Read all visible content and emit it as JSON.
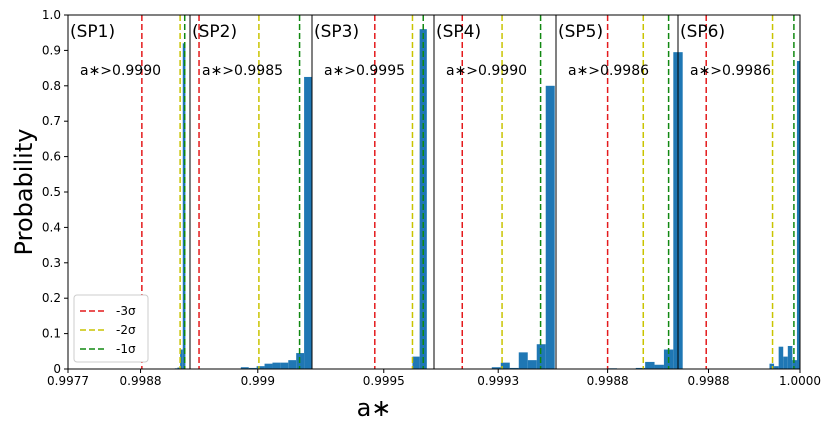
{
  "chart_data": {
    "type": "bar",
    "ylabel": "Probability",
    "xlabel": "a∗",
    "ylim": [
      0,
      1.0
    ],
    "y_ticks": [
      "0",
      "0.1",
      "0.2",
      "0.3",
      "0.4",
      "0.5",
      "0.6",
      "0.7",
      "0.8",
      "0.9",
      "1.0"
    ],
    "legend": {
      "placement": "lower-left",
      "entries": [
        {
          "label": "-3σ",
          "color": "#e41a1c"
        },
        {
          "label": "-2σ",
          "color": "#c9c400"
        },
        {
          "label": "-1σ",
          "color": "#118811"
        }
      ]
    },
    "bar_color": "#1f77b4",
    "panels": [
      {
        "title": "(SP1)",
        "annotation": "a∗>0.9990",
        "xlim": [
          0.9977,
          0.99955
        ],
        "x_ticks": [
          {
            "value": 0.9977,
            "label": "0.9977"
          },
          {
            "value": 0.9988,
            "label": "0.9988"
          }
        ],
        "sigma_lines": [
          0.99882,
          0.9994,
          0.99947
        ],
        "bars": [
          {
            "x0": 0.99932,
            "x1": 0.99936,
            "value": 0.002
          },
          {
            "x0": 0.99936,
            "x1": 0.9994,
            "value": 0.004
          },
          {
            "x0": 0.9994,
            "x1": 0.99944,
            "value": 0.055
          },
          {
            "x0": 0.99944,
            "x1": 0.99948,
            "value": 0.92
          }
        ]
      },
      {
        "title": "(SP2)",
        "annotation": "a∗>0.9985",
        "xlim": [
          0.9984,
          0.99948
        ],
        "x_ticks": [
          {
            "value": 0.999,
            "label": "0.999"
          }
        ],
        "sigma_lines": [
          0.99848,
          0.99901,
          0.99937
        ],
        "bars": [
          {
            "x0": 0.99885,
            "x1": 0.99892,
            "value": 0.005
          },
          {
            "x0": 0.99892,
            "x1": 0.99899,
            "value": 0.003
          },
          {
            "x0": 0.99899,
            "x1": 0.99906,
            "value": 0.008
          },
          {
            "x0": 0.99906,
            "x1": 0.99913,
            "value": 0.015
          },
          {
            "x0": 0.99913,
            "x1": 0.9992,
            "value": 0.018
          },
          {
            "x0": 0.9992,
            "x1": 0.99927,
            "value": 0.018
          },
          {
            "x0": 0.99927,
            "x1": 0.99934,
            "value": 0.025
          },
          {
            "x0": 0.99934,
            "x1": 0.99941,
            "value": 0.045
          },
          {
            "x0": 0.99941,
            "x1": 0.99948,
            "value": 0.825
          }
        ]
      },
      {
        "title": "(SP3)",
        "annotation": "a∗>0.9995",
        "xlim": [
          0.9991,
          0.99978
        ],
        "x_ticks": [
          {
            "value": 0.9995,
            "label": "0.9995"
          }
        ],
        "sigma_lines": [
          0.99945,
          0.99966,
          0.99972
        ],
        "bars": [
          {
            "x0": 0.99966,
            "x1": 0.9997,
            "value": 0.035
          },
          {
            "x0": 0.9997,
            "x1": 0.99974,
            "value": 0.96
          }
        ]
      },
      {
        "title": "(SP4)",
        "annotation": "a∗>0.9990",
        "xlim": [
          0.9988,
          0.99975
        ],
        "x_ticks": [
          {
            "value": 0.9993,
            "label": "0.9993"
          }
        ],
        "sigma_lines": [
          0.99902,
          0.99933,
          0.99963
        ],
        "bars": [
          {
            "x0": 0.99925,
            "x1": 0.99932,
            "value": 0.005
          },
          {
            "x0": 0.99932,
            "x1": 0.99939,
            "value": 0.018
          },
          {
            "x0": 0.99939,
            "x1": 0.99946,
            "value": 0.003
          },
          {
            "x0": 0.99946,
            "x1": 0.99953,
            "value": 0.047
          },
          {
            "x0": 0.99953,
            "x1": 0.9996,
            "value": 0.025
          },
          {
            "x0": 0.9996,
            "x1": 0.99967,
            "value": 0.07
          },
          {
            "x0": 0.99967,
            "x1": 0.99974,
            "value": 0.8
          }
        ]
      },
      {
        "title": "(SP5)",
        "annotation": "a∗>0.9986",
        "xlim": [
          0.99825,
          0.99955
        ],
        "x_ticks": [
          {
            "value": 0.9988,
            "label": "0.9988"
          }
        ],
        "sigma_lines": [
          0.9988,
          0.99918,
          0.99945
        ],
        "bars": [
          {
            "x0": 0.9988,
            "x1": 0.9989,
            "value": 0.002
          },
          {
            "x0": 0.9991,
            "x1": 0.9992,
            "value": 0.003
          },
          {
            "x0": 0.9992,
            "x1": 0.9993,
            "value": 0.02
          },
          {
            "x0": 0.9993,
            "x1": 0.9994,
            "value": 0.012
          },
          {
            "x0": 0.9994,
            "x1": 0.9995,
            "value": 0.055
          },
          {
            "x0": 0.9995,
            "x1": 0.9996,
            "value": 0.895
          }
        ]
      },
      {
        "title": "(SP6)",
        "annotation": "a∗>0.9986",
        "xlim": [
          0.9984,
          1.0
        ],
        "x_ticks": [
          {
            "value": 0.9988,
            "label": "0.9988"
          },
          {
            "value": 1.0,
            "label": "1.0000"
          }
        ],
        "sigma_lines": [
          0.99877,
          0.99964,
          0.99992
        ],
        "bars": [
          {
            "x0": 0.9996,
            "x1": 0.99966,
            "value": 0.015
          },
          {
            "x0": 0.99966,
            "x1": 0.99972,
            "value": 0.008
          },
          {
            "x0": 0.99972,
            "x1": 0.99978,
            "value": 0.063
          },
          {
            "x0": 0.99978,
            "x1": 0.99984,
            "value": 0.035
          },
          {
            "x0": 0.99984,
            "x1": 0.9999,
            "value": 0.065
          },
          {
            "x0": 0.9999,
            "x1": 0.99996,
            "value": 0.025
          },
          {
            "x0": 0.99996,
            "x1": 1.0,
            "value": 0.87
          }
        ]
      }
    ]
  }
}
